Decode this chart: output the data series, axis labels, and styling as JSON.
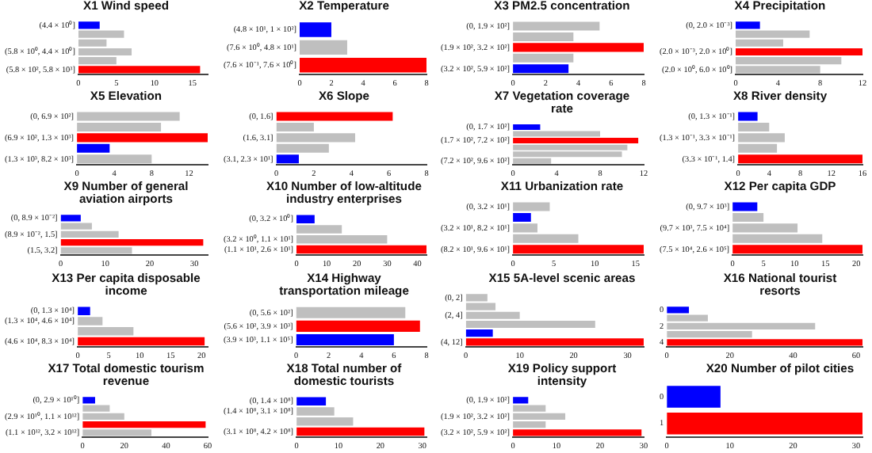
{
  "chart_data": [
    {
      "type": "bar",
      "orientation": "horizontal",
      "title": "X1 Wind speed",
      "categories": [
        "(4.4 × 10⁰]",
        null,
        null,
        "(5.8 × 10⁰, 4.4 × 10⁰]",
        null,
        "(5.8 × 10², 5.8 × 10³]"
      ],
      "values": [
        2.8,
        6,
        3.7,
        7,
        5,
        16
      ],
      "colors": [
        "#0000ff",
        "#bfbfbf",
        "#bfbfbf",
        "#bfbfbf",
        "#bfbfbf",
        "#ff0000"
      ],
      "xlim": [
        0,
        17
      ],
      "xticks": [
        0,
        5,
        10,
        15
      ]
    },
    {
      "type": "bar",
      "orientation": "horizontal",
      "title": "X2 Temperature",
      "categories": [
        "(4.8 × 10¹, 1 × 10²]",
        "(7.6 × 10⁰, 4.8 × 10¹]",
        "(7.6 × 10⁻¹, 7.6 × 10⁰]"
      ],
      "values": [
        2,
        3,
        8
      ],
      "colors": [
        "#0000ff",
        "#bfbfbf",
        "#ff0000"
      ],
      "xlim": [
        0,
        8
      ],
      "xticks": [
        0,
        2,
        4,
        6,
        8
      ]
    },
    {
      "type": "bar",
      "orientation": "horizontal",
      "title": "X3 PM2.5 concentration",
      "categories": [
        "(0, 1.9 × 10²]",
        null,
        "(1.9 × 10², 3.2 × 10²]",
        null,
        "(3.2 × 10², 5.9 × 10²]"
      ],
      "values": [
        5.3,
        3.7,
        8,
        3.7,
        3.4
      ],
      "colors": [
        "#bfbfbf",
        "#bfbfbf",
        "#ff0000",
        "#bfbfbf",
        "#0000ff"
      ],
      "xlim": [
        0,
        8
      ],
      "xticks": [
        0,
        2,
        4,
        6,
        8
      ]
    },
    {
      "type": "bar",
      "orientation": "horizontal",
      "title": "X4 Precipitation",
      "categories": [
        "(0, 2.0 × 10⁻³]",
        null,
        null,
        "(2.0 × 10⁻³, 2.0 × 10⁰]",
        null,
        "(2.0 × 10⁰, 6.0 × 10⁰]"
      ],
      "values": [
        2.3,
        7,
        4.5,
        12,
        10,
        8
      ],
      "colors": [
        "#0000ff",
        "#bfbfbf",
        "#bfbfbf",
        "#ff0000",
        "#bfbfbf",
        "#bfbfbf"
      ],
      "xlim": [
        0,
        12
      ],
      "xticks": [
        0,
        4,
        8,
        12
      ]
    },
    {
      "type": "bar",
      "orientation": "horizontal",
      "title": "X5 Elevation",
      "categories": [
        "(0, 6.9 × 10²]",
        null,
        "(6.9 × 10², 1.3 × 10³]",
        null,
        "(1.3 × 10³, 8.2 × 10³]"
      ],
      "values": [
        11,
        9,
        14,
        3.5,
        8
      ],
      "colors": [
        "#bfbfbf",
        "#bfbfbf",
        "#ff0000",
        "#0000ff",
        "#bfbfbf"
      ],
      "xlim": [
        0,
        14
      ],
      "xticks": [
        0,
        4,
        8,
        12
      ]
    },
    {
      "type": "bar",
      "orientation": "horizontal",
      "title": "X6 Slope",
      "categories": [
        "(0, 1.6]",
        null,
        "(1.6, 3.1]",
        null,
        "(3.1, 2.3 × 10¹]"
      ],
      "values": [
        6.2,
        2,
        4.2,
        2.8,
        1.2
      ],
      "colors": [
        "#ff0000",
        "#bfbfbf",
        "#bfbfbf",
        "#bfbfbf",
        "#0000ff"
      ],
      "xlim": [
        0,
        8
      ],
      "xticks": [
        0,
        2,
        4,
        6,
        8
      ]
    },
    {
      "type": "bar",
      "orientation": "horizontal",
      "title": "X7 Vegetation coverage rate",
      "categories": [
        "(0, 1.7 × 10²]",
        null,
        "(1.7 × 10², 7.2 × 10²]",
        null,
        null,
        "(7.2 × 10², 9.6 × 10²]"
      ],
      "values": [
        2.5,
        8,
        11.5,
        10.5,
        10,
        3.5
      ],
      "colors": [
        "#0000ff",
        "#bfbfbf",
        "#ff0000",
        "#bfbfbf",
        "#bfbfbf",
        "#bfbfbf"
      ],
      "xlim": [
        0,
        12
      ],
      "xticks": [
        0,
        4,
        8,
        12
      ]
    },
    {
      "type": "bar",
      "orientation": "horizontal",
      "title": "X8 River density",
      "categories": [
        "(0, 1.3 × 10⁻¹]",
        null,
        "(1.3 × 10⁻¹, 3.3 × 10⁻¹]",
        null,
        "(3.3 × 10⁻¹, 1.4]"
      ],
      "values": [
        2.5,
        4,
        6,
        5,
        16
      ],
      "colors": [
        "#0000ff",
        "#bfbfbf",
        "#bfbfbf",
        "#bfbfbf",
        "#ff0000"
      ],
      "xlim": [
        0,
        16
      ],
      "xticks": [
        0,
        4,
        8,
        12,
        16
      ]
    },
    {
      "type": "bar",
      "orientation": "horizontal",
      "title": "X9 Number of general aviation airports",
      "categories": [
        "(0, 8.9 × 10⁻²]",
        null,
        "(8.9 × 10⁻², 1.5]",
        null,
        "(1.5, 3.2]"
      ],
      "values": [
        4.5,
        7,
        13,
        32,
        16
      ],
      "colors": [
        "#0000ff",
        "#bfbfbf",
        "#bfbfbf",
        "#ff0000",
        "#bfbfbf"
      ],
      "xlim": [
        0,
        33
      ],
      "xticks": [
        0,
        10,
        20,
        30
      ]
    },
    {
      "type": "bar",
      "orientation": "horizontal",
      "title": "X10 Number of low-altitude industry enterprises",
      "categories": [
        "(0, 3.2 × 10⁰]",
        null,
        "(3.2 × 10⁰, 1.1 × 10¹]",
        "(1.1 × 10¹, 2.6 × 10¹]"
      ],
      "values": [
        6,
        15,
        30,
        43
      ],
      "colors": [
        "#0000ff",
        "#bfbfbf",
        "#bfbfbf",
        "#ff0000"
      ],
      "xlim": [
        0,
        43
      ],
      "xticks": [
        0,
        10,
        20,
        30,
        40
      ]
    },
    {
      "type": "bar",
      "orientation": "horizontal",
      "title": "X11 Urbanization rate",
      "categories": [
        "(0, 3.2 × 10¹]",
        null,
        "(3.2 × 10¹, 8.2 × 10¹]",
        null,
        "(8.2 × 10¹, 9.6 × 10¹]"
      ],
      "values": [
        4.5,
        2.2,
        3,
        8,
        16
      ],
      "colors": [
        "#bfbfbf",
        "#0000ff",
        "#bfbfbf",
        "#bfbfbf",
        "#ff0000"
      ],
      "xlim": [
        0,
        16
      ],
      "xticks": [
        0,
        5,
        10,
        15
      ]
    },
    {
      "type": "bar",
      "orientation": "horizontal",
      "title": "X12 Per capita GDP",
      "categories": [
        "(0, 9.7 × 10³]",
        null,
        "(9.7 × 10³, 7.5 × 10⁴]",
        null,
        "(7.5 × 10⁴, 2.6 × 10⁵]"
      ],
      "values": [
        4,
        5,
        10.5,
        14.5,
        21
      ],
      "colors": [
        "#0000ff",
        "#bfbfbf",
        "#bfbfbf",
        "#bfbfbf",
        "#ff0000"
      ],
      "xlim": [
        0,
        21
      ],
      "xticks": [
        0,
        5,
        10,
        15,
        20
      ]
    },
    {
      "type": "bar",
      "orientation": "horizontal",
      "title": "X13 Per capita disposable income",
      "categories": [
        "(0, 1.3 × 10⁴]",
        "(1.3 × 10⁴, 4.6 × 10⁴]",
        null,
        "(4.6 × 10⁴, 8.3 × 10⁴]"
      ],
      "values": [
        2,
        4,
        9,
        20.5
      ],
      "colors": [
        "#0000ff",
        "#bfbfbf",
        "#bfbfbf",
        "#ff0000"
      ],
      "xlim": [
        0,
        21
      ],
      "xticks": [
        0,
        5,
        10,
        15,
        20
      ]
    },
    {
      "type": "bar",
      "orientation": "horizontal",
      "title": "X14 Highway transportation mileage",
      "categories": [
        "(0, 5.6 × 10²]",
        "(5.6 × 10², 3.9 × 10³]",
        "(3.9 × 10³, 1.1 × 10⁵]"
      ],
      "values": [
        6.7,
        7.6,
        6
      ],
      "colors": [
        "#bfbfbf",
        "#ff0000",
        "#0000ff"
      ],
      "xlim": [
        0,
        8
      ],
      "xticks": [
        0,
        2,
        4,
        6,
        8
      ]
    },
    {
      "type": "bar",
      "orientation": "horizontal",
      "title": "X15 5A-level scenic areas",
      "categories": [
        "(0, 2]",
        null,
        "(2, 4]",
        null,
        null,
        "(4, 12]"
      ],
      "values": [
        4,
        5.5,
        10,
        24,
        5,
        33
      ],
      "colors": [
        "#bfbfbf",
        "#bfbfbf",
        "#bfbfbf",
        "#bfbfbf",
        "#0000ff",
        "#ff0000"
      ],
      "xlim": [
        0,
        33
      ],
      "xticks": [
        0,
        10,
        20,
        30
      ]
    },
    {
      "type": "bar",
      "orientation": "horizontal",
      "title": "X16 National tourist resorts",
      "categories": [
        "0",
        null,
        "2",
        null,
        "4"
      ],
      "values": [
        7,
        13,
        47,
        27,
        62
      ],
      "colors": [
        "#0000ff",
        "#bfbfbf",
        "#bfbfbf",
        "#bfbfbf",
        "#ff0000"
      ],
      "xlim": [
        0,
        62
      ],
      "xticks": [
        0,
        20,
        40,
        60
      ]
    },
    {
      "type": "bar",
      "orientation": "horizontal",
      "title": "X17 Total domestic tourism revenue",
      "categories": [
        "(0, 2.9 × 10¹⁰]",
        null,
        "(2.9 × 10¹⁰, 1.1 × 10¹²]",
        null,
        "(1.1 × 10¹², 3.2 × 10¹²]"
      ],
      "values": [
        6,
        13,
        20,
        59,
        33
      ],
      "colors": [
        "#0000ff",
        "#bfbfbf",
        "#bfbfbf",
        "#ff0000",
        "#bfbfbf"
      ],
      "xlim": [
        0,
        60
      ],
      "xticks": [
        0,
        20,
        40,
        60
      ]
    },
    {
      "type": "bar",
      "orientation": "horizontal",
      "title": "X18 Total number of domestic tourists",
      "categories": [
        "(0, 1.4 × 10⁸]",
        "(1.4 × 10⁸, 3.1 × 10⁸]",
        null,
        "(3.1 × 10⁸, 4.2 × 10⁸]"
      ],
      "values": [
        7,
        9,
        13.5,
        30.5
      ],
      "colors": [
        "#0000ff",
        "#bfbfbf",
        "#bfbfbf",
        "#ff0000"
      ],
      "xlim": [
        0,
        31
      ],
      "xticks": [
        0,
        10,
        20,
        30
      ]
    },
    {
      "type": "bar",
      "orientation": "horizontal",
      "title": "X19 Policy support intensity",
      "categories": [
        "(0, 1.9 × 10²]",
        null,
        "(1.9 × 10², 3.2 × 10²]",
        null,
        "(3.2 × 10², 5.9 × 10²]"
      ],
      "values": [
        3.5,
        7.5,
        12,
        7.5,
        29.5
      ],
      "colors": [
        "#0000ff",
        "#bfbfbf",
        "#bfbfbf",
        "#bfbfbf",
        "#ff0000"
      ],
      "xlim": [
        0,
        30
      ],
      "xticks": [
        0,
        10,
        20,
        30
      ]
    },
    {
      "type": "bar",
      "orientation": "horizontal",
      "title": "X20 Number of pilot cities",
      "categories": [
        "0",
        "1"
      ],
      "values": [
        8.5,
        31
      ],
      "colors": [
        "#0000ff",
        "#ff0000"
      ],
      "xlim": [
        0,
        31
      ],
      "xticks": [
        0,
        10,
        20,
        30
      ]
    }
  ]
}
